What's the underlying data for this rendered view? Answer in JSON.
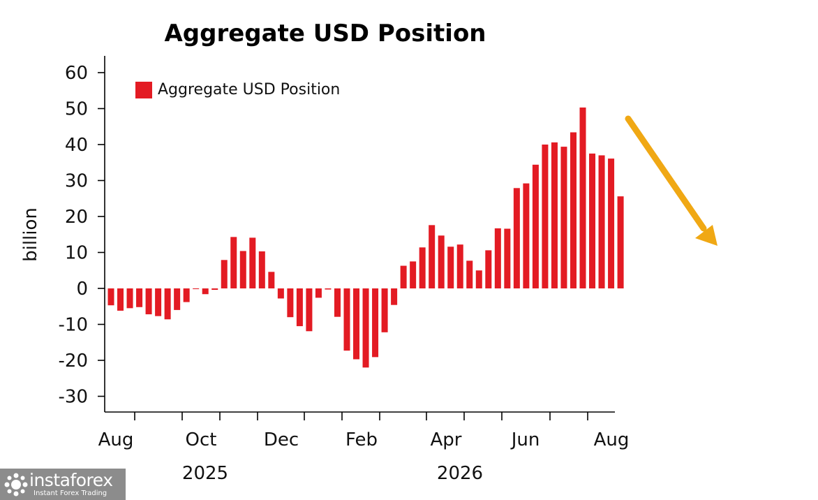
{
  "chart_data": {
    "type": "bar",
    "title": "Aggregate USD Position",
    "ylabel": "billion",
    "xlabel": "",
    "ylim": [
      -30,
      60
    ],
    "yticks": [
      60,
      50,
      40,
      30,
      20,
      10,
      0,
      -10,
      -20,
      -30
    ],
    "x_month_labels": [
      "Aug",
      "Oct",
      "Dec",
      "Feb",
      "Apr",
      "Jun",
      "Aug"
    ],
    "x_year_labels": [
      "2025",
      "2026"
    ],
    "legend": "Aggregate USD Position",
    "legend_position": "top-left",
    "grid": false,
    "series": [
      {
        "name": "Aggregate USD Position",
        "color": "#e31b23",
        "values": [
          -4.7,
          -6.2,
          -5.5,
          -5.2,
          -7.2,
          -7.7,
          -8.6,
          -6.0,
          -3.8,
          -0.2,
          -1.6,
          -0.4,
          7.9,
          14.3,
          10.4,
          14.1,
          10.3,
          4.6,
          -2.8,
          -8.0,
          -10.5,
          -11.9,
          -2.6,
          -0.3,
          -7.9,
          -17.3,
          -19.7,
          -22.0,
          -19.1,
          -12.2,
          -4.6,
          6.3,
          7.5,
          11.4,
          17.6,
          14.7,
          11.6,
          12.2,
          7.7,
          5.0,
          10.6,
          16.7,
          16.6,
          27.9,
          29.2,
          34.4,
          40.0,
          40.6,
          39.4,
          43.4,
          50.3,
          37.5,
          37.0,
          36.1,
          25.6
        ]
      }
    ],
    "annotation": {
      "type": "arrow",
      "color": "#f0a814",
      "direction": "down-right"
    }
  },
  "logo": {
    "name": "instaforex",
    "tagline": "Instant Forex Trading"
  }
}
